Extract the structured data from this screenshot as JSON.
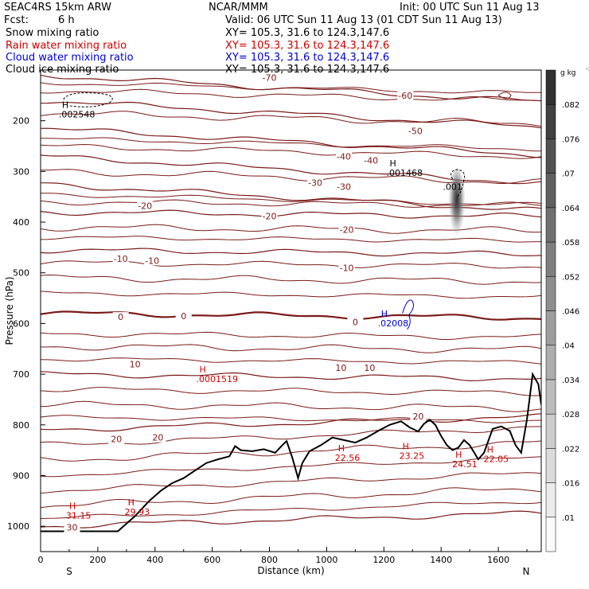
{
  "header": {
    "model": "SEAC4RS 15km ARW",
    "center": "NCAR/MMM",
    "init": "Init: 00 UTC Sun 11 Aug 13",
    "fcst_label": "Fcst:",
    "fcst_value": "6 h",
    "valid": "Valid: 06 UTC Sun 11 Aug 13 (01 CDT Sun 11 Aug 13)"
  },
  "fields": [
    {
      "name": "Snow mixing ratio",
      "xy": "XY= 105.3, 31.6 to 124.3,147.6",
      "color": "#000000"
    },
    {
      "name": "Rain water mixing ratio",
      "xy": "XY= 105.3, 31.6 to 124.3,147.6",
      "color": "#cc0000"
    },
    {
      "name": "Cloud water mixing ratio",
      "xy": "XY= 105.3, 31.6 to 124.3,147.6",
      "color": "#0000cc"
    },
    {
      "name": "Cloud ice mixing ratio",
      "xy": "XY= 105.3, 31.6 to 124.3,147.6",
      "color": "#000000"
    }
  ],
  "chart_data": {
    "type": "cross-section contour",
    "xlabel": "Distance (km)",
    "ylabel": "Pressure (hPa)",
    "xlim": [
      0,
      1750
    ],
    "ylim": [
      1050,
      100
    ],
    "x_ticks": [
      0,
      200,
      400,
      600,
      800,
      1000,
      1200,
      1400,
      1600
    ],
    "y_ticks": [
      200,
      300,
      400,
      500,
      600,
      700,
      800,
      900,
      1000
    ],
    "x_end_labels": {
      "left": "S",
      "right": "N"
    },
    "colorbar": {
      "unit_prefix": "g kg",
      "unit_exp": "-1",
      "levels": [
        ".01",
        ".016",
        ".022",
        ".028",
        ".034",
        ".04",
        ".046",
        ".052",
        ".058",
        ".064",
        ".07",
        ".076",
        ".082"
      ]
    },
    "isotherms": [
      {
        "level": -70,
        "pressure": 110
      },
      {
        "level": -60,
        "pressure": 160
      },
      {
        "level": -50,
        "pressure": 215
      },
      {
        "level": -40,
        "pressure": 270
      },
      {
        "level": -30,
        "pressure": 325
      },
      {
        "level": -20,
        "pressure": 380
      },
      {
        "level": -10,
        "pressure": 455
      },
      {
        "level": 0,
        "pressure": 580
      },
      {
        "level": 10,
        "pressure": 700
      },
      {
        "level": 20,
        "pressure": 810
      },
      {
        "level": 30,
        "pressure": 1000
      }
    ],
    "contour_labels": [
      {
        "text": "-70",
        "x": 800,
        "p": 115
      },
      {
        "text": "-60",
        "x": 1275,
        "p": 150
      },
      {
        "text": "-50",
        "x": 1310,
        "p": 220
      },
      {
        "text": "-40",
        "x": 1060,
        "p": 270
      },
      {
        "text": "-40",
        "x": 1155,
        "p": 278
      },
      {
        "text": "-30",
        "x": 960,
        "p": 322
      },
      {
        "text": "-30",
        "x": 1060,
        "p": 330
      },
      {
        "text": "-20",
        "x": 365,
        "p": 368
      },
      {
        "text": "-20",
        "x": 800,
        "p": 388
      },
      {
        "text": "-20",
        "x": 1070,
        "p": 415
      },
      {
        "text": "-10",
        "x": 280,
        "p": 472
      },
      {
        "text": "-10",
        "x": 390,
        "p": 476
      },
      {
        "text": "-10",
        "x": 1070,
        "p": 490
      },
      {
        "text": "0",
        "x": 280,
        "p": 587
      },
      {
        "text": "0",
        "x": 500,
        "p": 585
      },
      {
        "text": "0",
        "x": 1100,
        "p": 597
      },
      {
        "text": "10",
        "x": 330,
        "p": 680
      },
      {
        "text": "10",
        "x": 1050,
        "p": 687
      },
      {
        "text": "10",
        "x": 1150,
        "p": 687
      },
      {
        "text": "20",
        "x": 265,
        "p": 828
      },
      {
        "text": "20",
        "x": 410,
        "p": 825
      },
      {
        "text": "20",
        "x": 1320,
        "p": 783
      },
      {
        "text": "30",
        "x": 110,
        "p": 1002
      }
    ],
    "maxima": [
      {
        "label": "H",
        "value": ".002548",
        "x": 125,
        "p": 178,
        "color": "#000000"
      },
      {
        "label": "H",
        "value": ".001468",
        "x": 1270,
        "p": 293,
        "color": "#000000"
      },
      {
        "label": "H",
        "value": ".02008",
        "x": 1240,
        "p": 590,
        "color": "#0000cc"
      },
      {
        "label": "H",
        "value": ".0001519",
        "x": 605,
        "p": 700,
        "color": "#cc0000"
      },
      {
        "label": "H",
        "value": "22.56",
        "x": 1090,
        "p": 855,
        "color": "#cc0000"
      },
      {
        "label": "H",
        "value": "23.25",
        "x": 1315,
        "p": 851,
        "color": "#cc0000"
      },
      {
        "label": "H",
        "value": "24.51",
        "x": 1500,
        "p": 868,
        "color": "#cc0000"
      },
      {
        "label": "H",
        "value": "22.05",
        "x": 1610,
        "p": 858,
        "color": "#cc0000"
      },
      {
        "label": "H",
        "value": "31.15",
        "x": 150,
        "p": 969,
        "color": "#cc0000"
      },
      {
        "label": "H",
        "value": "29.93",
        "x": 355,
        "p": 962,
        "color": "#cc0000"
      }
    ],
    "shaded_max": {
      "label": ".001",
      "x": 1445,
      "p": 330
    },
    "terrain": [
      [
        0,
        1010
      ],
      [
        150,
        1010
      ],
      [
        270,
        1010
      ],
      [
        330,
        980
      ],
      [
        380,
        950
      ],
      [
        420,
        930
      ],
      [
        460,
        915
      ],
      [
        500,
        905
      ],
      [
        540,
        890
      ],
      [
        580,
        875
      ],
      [
        620,
        868
      ],
      [
        660,
        862
      ],
      [
        680,
        842
      ],
      [
        700,
        850
      ],
      [
        740,
        852
      ],
      [
        780,
        848
      ],
      [
        820,
        855
      ],
      [
        845,
        840
      ],
      [
        860,
        832
      ],
      [
        880,
        865
      ],
      [
        900,
        905
      ],
      [
        915,
        875
      ],
      [
        940,
        852
      ],
      [
        980,
        840
      ],
      [
        1020,
        825
      ],
      [
        1060,
        830
      ],
      [
        1100,
        835
      ],
      [
        1140,
        825
      ],
      [
        1180,
        812
      ],
      [
        1220,
        800
      ],
      [
        1260,
        793
      ],
      [
        1290,
        805
      ],
      [
        1320,
        813
      ],
      [
        1340,
        798
      ],
      [
        1360,
        790
      ],
      [
        1380,
        800
      ],
      [
        1400,
        822
      ],
      [
        1420,
        840
      ],
      [
        1440,
        850
      ],
      [
        1460,
        845
      ],
      [
        1480,
        830
      ],
      [
        1500,
        840
      ],
      [
        1530,
        868
      ],
      [
        1550,
        855
      ],
      [
        1580,
        808
      ],
      [
        1610,
        803
      ],
      [
        1640,
        812
      ],
      [
        1660,
        840
      ],
      [
        1680,
        855
      ],
      [
        1700,
        790
      ],
      [
        1720,
        700
      ],
      [
        1740,
        720
      ],
      [
        1750,
        760
      ]
    ]
  }
}
